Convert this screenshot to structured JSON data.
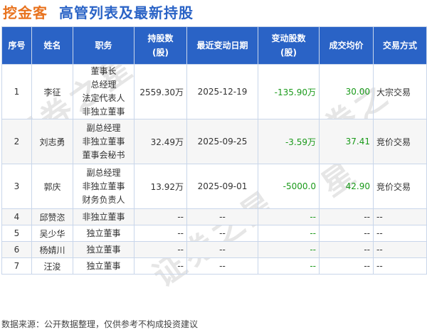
{
  "brand": "挖金客",
  "title": "高管列表及最新持股",
  "headers": [
    "序号",
    "姓名",
    "职务",
    "持股数\n(股)",
    "最近变动日期",
    "变动股数\n(股)",
    "成交均价",
    "交易方式"
  ],
  "rows": [
    {
      "idx": "1",
      "name": "李征",
      "positions": [
        "董事长",
        "总经理",
        "法定代表人",
        "非独立董事"
      ],
      "shares": "2559.30万",
      "date": "2025-12-19",
      "change": "-135.90万",
      "price": "30.00",
      "method": "大宗交易"
    },
    {
      "idx": "2",
      "name": "刘志勇",
      "positions": [
        "副总经理",
        "非独立董事",
        "董事会秘书"
      ],
      "shares": "32.49万",
      "date": "2025-09-25",
      "change": "-3.59万",
      "price": "37.41",
      "method": "竞价交易"
    },
    {
      "idx": "3",
      "name": "郭庆",
      "positions": [
        "副总经理",
        "非独立董事",
        "财务负责人"
      ],
      "shares": "13.92万",
      "date": "2025-09-01",
      "change": "-5000.0",
      "price": "42.90",
      "method": "竞价交易"
    },
    {
      "idx": "4",
      "name": "邱赞恣",
      "positions": [
        "非独立董事"
      ],
      "shares": "--",
      "date": "--",
      "change": "--",
      "price": "--",
      "method": "--"
    },
    {
      "idx": "5",
      "name": "吴少华",
      "positions": [
        "独立董事"
      ],
      "shares": "--",
      "date": "--",
      "change": "--",
      "price": "--",
      "method": "--"
    },
    {
      "idx": "6",
      "name": "杨婧川",
      "positions": [
        "独立董事"
      ],
      "shares": "--",
      "date": "--",
      "change": "--",
      "price": "--",
      "method": "--"
    },
    {
      "idx": "7",
      "name": "汪浚",
      "positions": [
        "独立董事"
      ],
      "shares": "--",
      "date": "--",
      "change": "--",
      "price": "--",
      "method": "--"
    }
  ],
  "source": "数据来源：公开数据整理，仅供参考不构成投资建议",
  "colors": {
    "header_bg": "#2a63c6",
    "brand": "#e8731f",
    "negative": "#1a9a1a",
    "price": "#1a9a1a"
  }
}
